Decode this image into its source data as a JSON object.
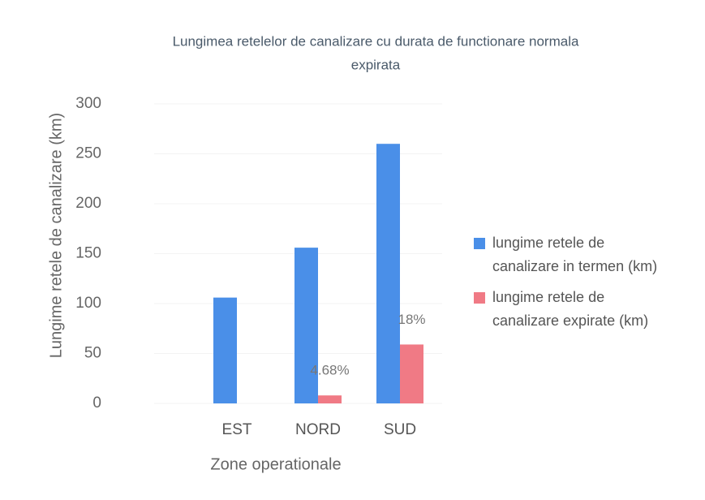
{
  "chart_data": {
    "type": "bar",
    "title_lines": [
      "Lungimea retelelor  de canalizare cu durata de functionare normala",
      "expirata"
    ],
    "x_label": "Zone operationale",
    "y_label": "Lungime retele de  canalizare (km)",
    "categories": [
      "EST",
      "NORD",
      "SUD"
    ],
    "series": [
      {
        "name_lines": [
          "lungime retele de",
          "canalizare in termen (km)"
        ],
        "color": "#4a8fe8",
        "values": [
          106,
          156,
          260
        ]
      },
      {
        "name_lines": [
          "lungime retele de",
          "canalizare expirate (km)"
        ],
        "color": "#f07a85",
        "values": [
          null,
          8,
          59
        ],
        "percent_labels": [
          null,
          "4.68%",
          "18%"
        ]
      }
    ],
    "ylim": [
      0,
      300
    ],
    "yticks": [
      0,
      50,
      100,
      150,
      200,
      250,
      300
    ],
    "grid": true,
    "legend": "right"
  }
}
